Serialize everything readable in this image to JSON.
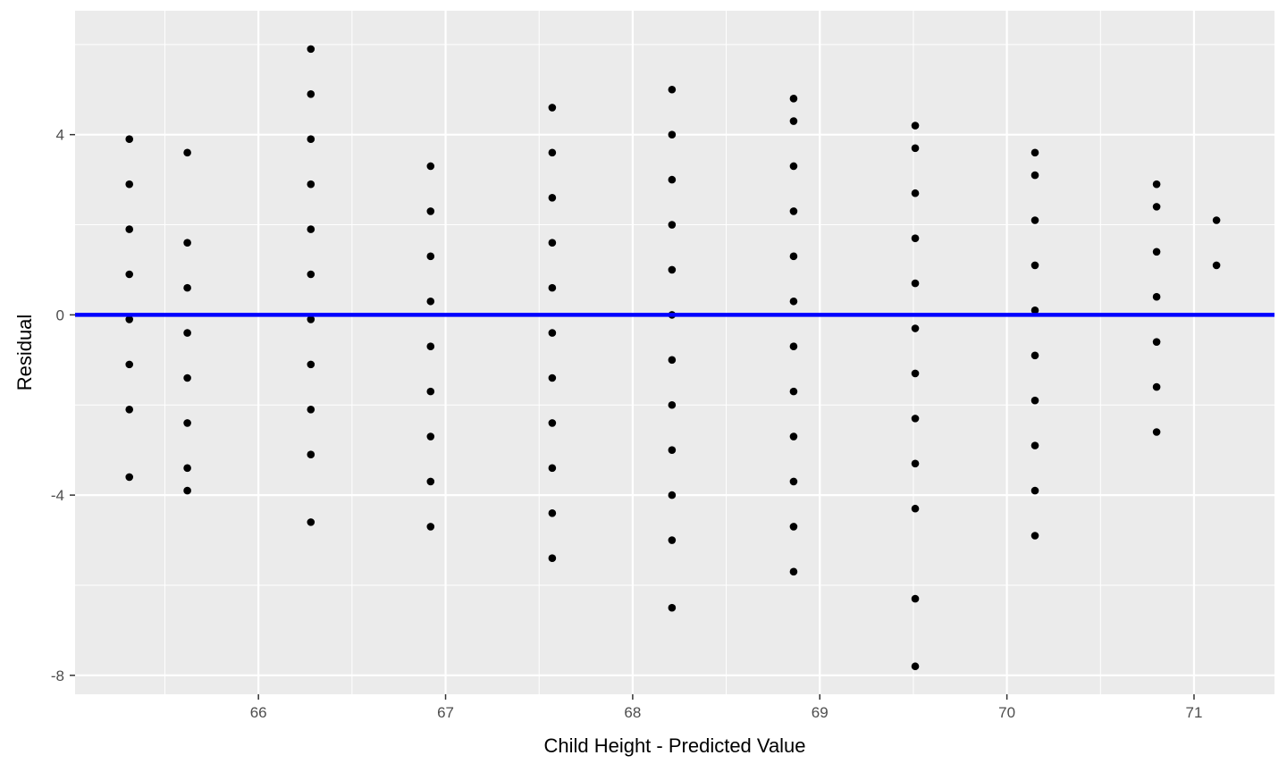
{
  "chart_data": {
    "type": "scatter",
    "title": "",
    "xlabel": "Child Height - Predicted Value",
    "ylabel": "Residual",
    "xlim": [
      65.02,
      71.43
    ],
    "ylim": [
      -8.42,
      6.75
    ],
    "x_ticks": [
      66,
      67,
      68,
      69,
      70,
      71
    ],
    "y_ticks": [
      -8,
      -4,
      0,
      4
    ],
    "x_tick_labels": [
      "66",
      "67",
      "68",
      "69",
      "70",
      "71"
    ],
    "y_tick_labels": [
      "-8",
      "-4",
      "0",
      "4"
    ],
    "grid": true,
    "legend": "none",
    "reference_line": {
      "y": 0,
      "color": "#0000ff"
    },
    "colors": {
      "panel_background": "#ebebeb",
      "grid_line": "#ffffff",
      "point": "#000000",
      "reference_line": "#0000ff",
      "tick_label": "#4d4d4d",
      "axis_title": "#000000"
    },
    "points": [
      {
        "x": 65.31,
        "y": 3.9
      },
      {
        "x": 65.31,
        "y": 2.9
      },
      {
        "x": 65.31,
        "y": 1.9
      },
      {
        "x": 65.31,
        "y": 0.9
      },
      {
        "x": 65.31,
        "y": -0.1
      },
      {
        "x": 65.31,
        "y": -1.1
      },
      {
        "x": 65.31,
        "y": -2.1
      },
      {
        "x": 65.31,
        "y": -3.6
      },
      {
        "x": 65.62,
        "y": 3.6
      },
      {
        "x": 65.62,
        "y": 1.6
      },
      {
        "x": 65.62,
        "y": 0.6
      },
      {
        "x": 65.62,
        "y": -0.4
      },
      {
        "x": 65.62,
        "y": -1.4
      },
      {
        "x": 65.62,
        "y": -2.4
      },
      {
        "x": 65.62,
        "y": -3.4
      },
      {
        "x": 65.62,
        "y": -3.9
      },
      {
        "x": 66.28,
        "y": 5.9
      },
      {
        "x": 66.28,
        "y": 4.9
      },
      {
        "x": 66.28,
        "y": 3.9
      },
      {
        "x": 66.28,
        "y": 2.9
      },
      {
        "x": 66.28,
        "y": 1.9
      },
      {
        "x": 66.28,
        "y": 0.9
      },
      {
        "x": 66.28,
        "y": -0.1
      },
      {
        "x": 66.28,
        "y": -1.1
      },
      {
        "x": 66.28,
        "y": -2.1
      },
      {
        "x": 66.28,
        "y": -3.1
      },
      {
        "x": 66.28,
        "y": -4.6
      },
      {
        "x": 66.92,
        "y": 3.3
      },
      {
        "x": 66.92,
        "y": 2.3
      },
      {
        "x": 66.92,
        "y": 1.3
      },
      {
        "x": 66.92,
        "y": 0.3
      },
      {
        "x": 66.92,
        "y": -0.7
      },
      {
        "x": 66.92,
        "y": -1.7
      },
      {
        "x": 66.92,
        "y": -2.7
      },
      {
        "x": 66.92,
        "y": -3.7
      },
      {
        "x": 66.92,
        "y": -4.7
      },
      {
        "x": 67.57,
        "y": 4.6
      },
      {
        "x": 67.57,
        "y": 3.6
      },
      {
        "x": 67.57,
        "y": 2.6
      },
      {
        "x": 67.57,
        "y": 1.6
      },
      {
        "x": 67.57,
        "y": 0.6
      },
      {
        "x": 67.57,
        "y": -0.4
      },
      {
        "x": 67.57,
        "y": -1.4
      },
      {
        "x": 67.57,
        "y": -2.4
      },
      {
        "x": 67.57,
        "y": -3.4
      },
      {
        "x": 67.57,
        "y": -4.4
      },
      {
        "x": 67.57,
        "y": -5.4
      },
      {
        "x": 68.21,
        "y": 5.0
      },
      {
        "x": 68.21,
        "y": 4.0
      },
      {
        "x": 68.21,
        "y": 3.0
      },
      {
        "x": 68.21,
        "y": 2.0
      },
      {
        "x": 68.21,
        "y": 1.0
      },
      {
        "x": 68.21,
        "y": 0.0
      },
      {
        "x": 68.21,
        "y": -1.0
      },
      {
        "x": 68.21,
        "y": -2.0
      },
      {
        "x": 68.21,
        "y": -3.0
      },
      {
        "x": 68.21,
        "y": -4.0
      },
      {
        "x": 68.21,
        "y": -5.0
      },
      {
        "x": 68.21,
        "y": -6.5
      },
      {
        "x": 68.86,
        "y": 4.8
      },
      {
        "x": 68.86,
        "y": 4.3
      },
      {
        "x": 68.86,
        "y": 3.3
      },
      {
        "x": 68.86,
        "y": 2.3
      },
      {
        "x": 68.86,
        "y": 1.3
      },
      {
        "x": 68.86,
        "y": 0.3
      },
      {
        "x": 68.86,
        "y": -0.7
      },
      {
        "x": 68.86,
        "y": -1.7
      },
      {
        "x": 68.86,
        "y": -2.7
      },
      {
        "x": 68.86,
        "y": -3.7
      },
      {
        "x": 68.86,
        "y": -4.7
      },
      {
        "x": 68.86,
        "y": -5.7
      },
      {
        "x": 69.51,
        "y": 4.2
      },
      {
        "x": 69.51,
        "y": 3.7
      },
      {
        "x": 69.51,
        "y": 2.7
      },
      {
        "x": 69.51,
        "y": 1.7
      },
      {
        "x": 69.51,
        "y": 0.7
      },
      {
        "x": 69.51,
        "y": -0.3
      },
      {
        "x": 69.51,
        "y": -1.3
      },
      {
        "x": 69.51,
        "y": -2.3
      },
      {
        "x": 69.51,
        "y": -3.3
      },
      {
        "x": 69.51,
        "y": -4.3
      },
      {
        "x": 69.51,
        "y": -6.3
      },
      {
        "x": 69.51,
        "y": -7.8
      },
      {
        "x": 70.15,
        "y": 3.6
      },
      {
        "x": 70.15,
        "y": 3.1
      },
      {
        "x": 70.15,
        "y": 2.1
      },
      {
        "x": 70.15,
        "y": 1.1
      },
      {
        "x": 70.15,
        "y": 0.1
      },
      {
        "x": 70.15,
        "y": -0.9
      },
      {
        "x": 70.15,
        "y": -1.9
      },
      {
        "x": 70.15,
        "y": -2.9
      },
      {
        "x": 70.15,
        "y": -3.9
      },
      {
        "x": 70.15,
        "y": -4.9
      },
      {
        "x": 70.8,
        "y": 2.9
      },
      {
        "x": 70.8,
        "y": 2.4
      },
      {
        "x": 70.8,
        "y": 1.4
      },
      {
        "x": 70.8,
        "y": 0.4
      },
      {
        "x": 70.8,
        "y": -0.6
      },
      {
        "x": 70.8,
        "y": -1.6
      },
      {
        "x": 70.8,
        "y": -2.6
      },
      {
        "x": 71.12,
        "y": 2.1
      },
      {
        "x": 71.12,
        "y": 1.1
      }
    ]
  }
}
